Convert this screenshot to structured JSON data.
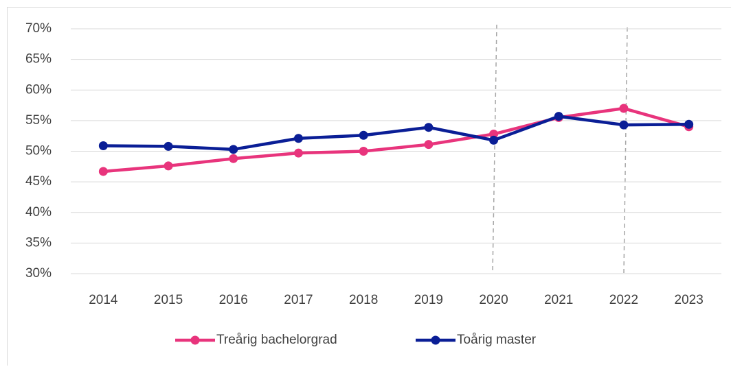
{
  "chart_data": {
    "type": "line",
    "categories": [
      "2014",
      "2015",
      "2016",
      "2017",
      "2018",
      "2019",
      "2020",
      "2021",
      "2022",
      "2023"
    ],
    "series": [
      {
        "name": "Treårig bachelorgrad",
        "color": "#e8347c",
        "values": [
          46.7,
          47.6,
          48.8,
          49.7,
          50.0,
          51.1,
          52.8,
          55.5,
          57.0,
          54.0
        ]
      },
      {
        "name": "Toårig master",
        "color": "#0a1e96",
        "values": [
          50.9,
          50.8,
          50.3,
          52.1,
          52.6,
          53.9,
          51.8,
          55.7,
          54.3,
          54.4
        ]
      }
    ],
    "ylim": [
      30,
      70
    ],
    "yticks": [
      {
        "value": 30,
        "label": "30%"
      },
      {
        "value": 35,
        "label": "35%"
      },
      {
        "value": 40,
        "label": "40%"
      },
      {
        "value": 45,
        "label": "45%"
      },
      {
        "value": 50,
        "label": "50%"
      },
      {
        "value": 55,
        "label": "55%"
      },
      {
        "value": 60,
        "label": "60%"
      },
      {
        "value": 65,
        "label": "65%"
      },
      {
        "value": 70,
        "label": "70%"
      }
    ],
    "grid": true,
    "legend": "bottom"
  }
}
